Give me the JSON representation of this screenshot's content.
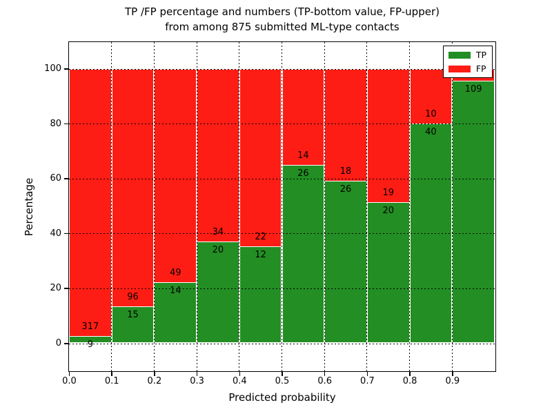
{
  "figure": {
    "title_line1": "TP /FP percentage and numbers (TP-bottom value, FP-upper)",
    "title_line2": "from among 875 submitted ML-type contacts"
  },
  "chart_data": {
    "type": "bar",
    "stacked": true,
    "normalization": "each bin scaled to 100 percent, labels show raw counts",
    "title": "TP /FP percentage and numbers (TP-bottom value, FP-upper) from among 875 submitted ML-type contacts",
    "xlabel": "Predicted probability",
    "ylabel": "Percentage",
    "total_contacts": 875,
    "xlim": [
      0.0,
      1.0
    ],
    "ylim": [
      -10.3,
      110.1
    ],
    "yticks": [
      "0",
      "20",
      "40",
      "60",
      "80",
      "100"
    ],
    "ytick_values": [
      0,
      20,
      40,
      60,
      80,
      100
    ],
    "xtick_labels": [
      "0.0",
      "0.1",
      "0.2",
      "0.3",
      "0.4",
      "0.5",
      "0.6",
      "0.7",
      "0.8",
      "0.9"
    ],
    "grid": "dotted",
    "bin_width": 0.1,
    "legend": {
      "position": "upper right",
      "entries": [
        {
          "label": "TP",
          "color": "#238e23"
        },
        {
          "label": "FP",
          "color": "#fe1d14"
        }
      ]
    },
    "series": [
      {
        "name": "TP",
        "values": [
          9,
          15,
          14,
          20,
          12,
          26,
          26,
          20,
          40,
          109
        ]
      },
      {
        "name": "FP",
        "values": [
          317,
          96,
          49,
          34,
          22,
          14,
          18,
          19,
          10,
          5
        ]
      }
    ],
    "bins": [
      {
        "x_start": "0.0",
        "tp": 9,
        "fp": 317,
        "tp_label": "9",
        "fp_label": "317"
      },
      {
        "x_start": "0.1",
        "tp": 15,
        "fp": 96,
        "tp_label": "15",
        "fp_label": "96"
      },
      {
        "x_start": "0.2",
        "tp": 14,
        "fp": 49,
        "tp_label": "14",
        "fp_label": "49"
      },
      {
        "x_start": "0.3",
        "tp": 20,
        "fp": 34,
        "tp_label": "20",
        "fp_label": "34"
      },
      {
        "x_start": "0.4",
        "tp": 12,
        "fp": 22,
        "tp_label": "12",
        "fp_label": "22"
      },
      {
        "x_start": "0.5",
        "tp": 26,
        "fp": 14,
        "tp_label": "26",
        "fp_label": "14"
      },
      {
        "x_start": "0.6",
        "tp": 26,
        "fp": 18,
        "tp_label": "26",
        "fp_label": "18"
      },
      {
        "x_start": "0.7",
        "tp": 20,
        "fp": 19,
        "tp_label": "20",
        "fp_label": "19"
      },
      {
        "x_start": "0.8",
        "tp": 40,
        "fp": 10,
        "tp_label": "40",
        "fp_label": "10"
      },
      {
        "x_start": "0.9",
        "tp": 109,
        "fp": 5,
        "tp_label": "109",
        "fp_label": ""
      }
    ]
  },
  "colors": {
    "tp": "#238e23",
    "fp": "#fe1d14",
    "bar_edge": "#ffffff",
    "grid": "#000000",
    "text": "#000000",
    "background": "#ffffff"
  }
}
